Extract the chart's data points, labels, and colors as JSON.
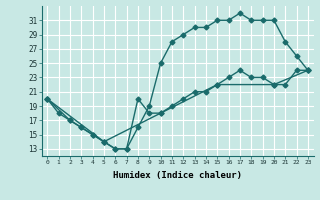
{
  "xlabel": "Humidex (Indice chaleur)",
  "bg_color": "#c8e8e4",
  "line_color": "#1a6b6b",
  "grid_color": "#ffffff",
  "xlim": [
    -0.5,
    23.5
  ],
  "ylim": [
    12.0,
    33.0
  ],
  "xticks": [
    0,
    1,
    2,
    3,
    4,
    5,
    6,
    7,
    8,
    9,
    10,
    11,
    12,
    13,
    14,
    15,
    16,
    17,
    18,
    19,
    20,
    21,
    22,
    23
  ],
  "yticks": [
    13,
    15,
    17,
    19,
    21,
    23,
    25,
    27,
    29,
    31
  ],
  "series1_x": [
    0,
    1,
    2,
    3,
    4,
    5,
    6,
    7,
    8,
    9,
    10,
    11,
    12,
    13,
    14,
    15,
    16,
    17,
    18,
    19,
    20,
    21,
    22,
    23
  ],
  "series1_y": [
    20,
    18,
    17,
    16,
    15,
    14,
    13,
    13,
    16,
    19,
    25,
    28,
    29,
    30,
    30,
    31,
    31,
    32,
    31,
    31,
    31,
    28,
    26,
    24
  ],
  "series2_x": [
    0,
    2,
    3,
    4,
    5,
    6,
    7,
    8,
    9,
    10,
    11,
    12,
    13,
    14,
    15,
    16,
    17,
    18,
    19,
    20,
    21,
    22,
    23
  ],
  "series2_y": [
    20,
    17,
    16,
    15,
    14,
    13,
    13,
    20,
    18,
    18,
    19,
    20,
    21,
    21,
    22,
    23,
    24,
    23,
    23,
    22,
    22,
    24,
    24
  ],
  "series3_x": [
    0,
    5,
    10,
    15,
    20,
    23
  ],
  "series3_y": [
    20,
    14,
    18,
    22,
    22,
    24
  ],
  "marker": "D",
  "markersize": 2.5,
  "linewidth": 1.0
}
